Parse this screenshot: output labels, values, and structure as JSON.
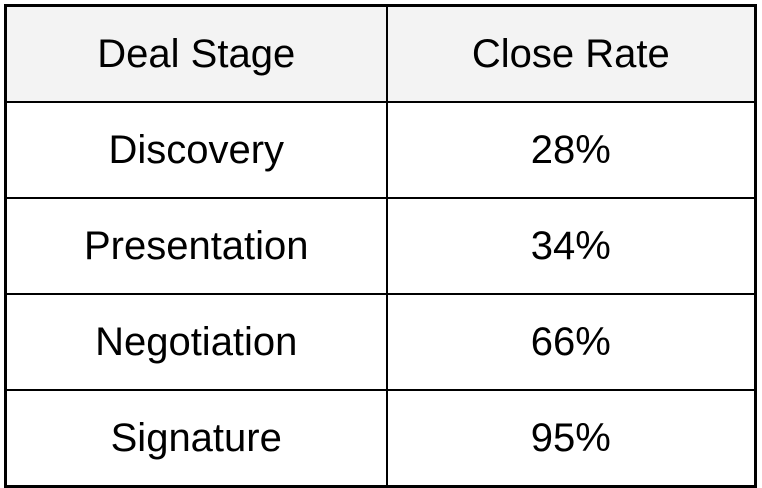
{
  "table": {
    "header": [
      "Deal Stage",
      "Close Rate"
    ],
    "rows": [
      [
        "Discovery",
        "28%"
      ],
      [
        "Presentation",
        "34%"
      ],
      [
        "Negotiation",
        "66%"
      ],
      [
        "Signature",
        "95%"
      ]
    ]
  }
}
